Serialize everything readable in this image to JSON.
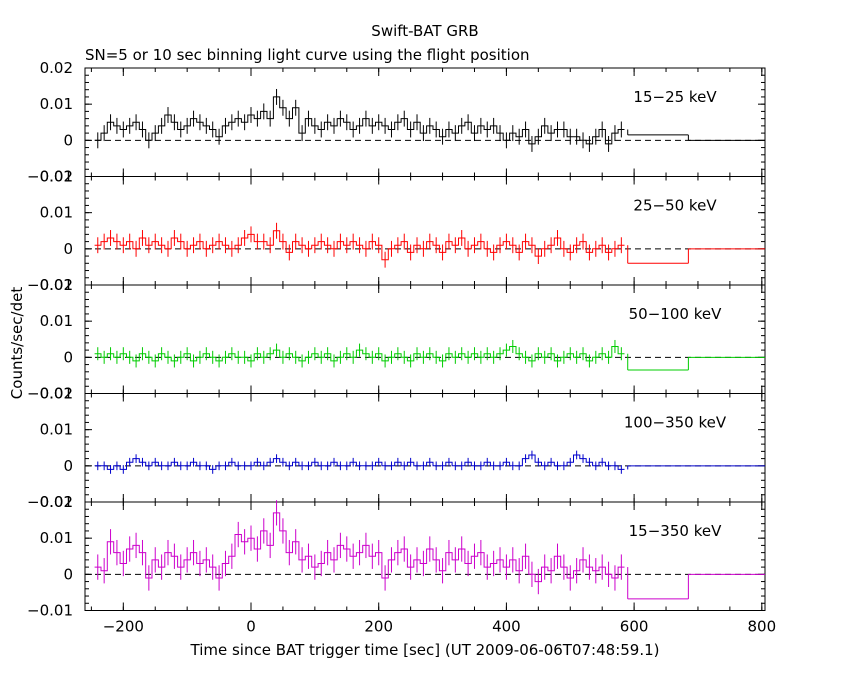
{
  "chart_data": {
    "type": "line",
    "title": "Swift-BAT GRB",
    "subtitle": "SN=5 or 10 sec binning light curve using the flight position",
    "xlabel": "Time since BAT trigger time [sec] (UT 2009-06-06T07:48:59.1)",
    "ylabel": "Counts/sec/det",
    "xlim": [
      -260,
      805
    ],
    "x_ticks": [
      -200,
      0,
      200,
      400,
      600,
      800
    ],
    "x_tick_labels": [
      "−200",
      "0",
      "200",
      "400",
      "600",
      "800"
    ],
    "grid": false,
    "panels": [
      {
        "name": "15−25 keV",
        "color": "#000000",
        "ylim": [
          -0.01,
          0.02
        ],
        "y_ticks": [
          -0.01,
          0,
          0.01,
          0.02
        ],
        "y_tick_labels": [
          "−0.01",
          "0",
          "0.01",
          "0.02"
        ],
        "binned_x": [
          -240,
          -230,
          -220,
          -210,
          -200,
          -190,
          -180,
          -170,
          -160,
          -150,
          -140,
          -130,
          -120,
          -110,
          -100,
          -90,
          -80,
          -70,
          -60,
          -50,
          -40,
          -30,
          -20,
          -10,
          0,
          10,
          20,
          30,
          40,
          50,
          60,
          70,
          80,
          90,
          100,
          110,
          120,
          130,
          140,
          150,
          160,
          170,
          180,
          190,
          200,
          210,
          220,
          230,
          240,
          250,
          260,
          270,
          280,
          290,
          300,
          310,
          320,
          330,
          340,
          350,
          360,
          370,
          380,
          390,
          400,
          410,
          420,
          430,
          440,
          450,
          460,
          470,
          480,
          490,
          500,
          510,
          520,
          530,
          540,
          550,
          560,
          570,
          580
        ],
        "binned_y": [
          0.0,
          0.002,
          0.005,
          0.004,
          0.003,
          0.004,
          0.005,
          0.003,
          0.0,
          0.002,
          0.004,
          0.007,
          0.005,
          0.003,
          0.004,
          0.006,
          0.005,
          0.004,
          0.003,
          0.001,
          0.004,
          0.005,
          0.006,
          0.005,
          0.007,
          0.006,
          0.008,
          0.006,
          0.012,
          0.009,
          0.006,
          0.009,
          0.002,
          0.006,
          0.004,
          0.003,
          0.005,
          0.004,
          0.006,
          0.005,
          0.003,
          0.004,
          0.006,
          0.004,
          0.005,
          0.004,
          0.003,
          0.005,
          0.006,
          0.003,
          0.005,
          0.002,
          0.004,
          0.003,
          0.001,
          0.003,
          0.002,
          0.004,
          0.005,
          0.002,
          0.004,
          0.003,
          0.004,
          0.002,
          0.0,
          0.002,
          0.001,
          0.003,
          -0.001,
          0.001,
          0.004,
          0.002,
          0.003,
          0.003,
          0.001,
          0.001,
          0.0,
          -0.001,
          0.001,
          0.003,
          -0.001,
          0.002,
          0.003
        ],
        "late_bins": [
          {
            "x": [
              590,
              685
            ],
            "y": 0.0015
          },
          {
            "x": [
              685,
              805
            ],
            "y": 0.0
          }
        ],
        "error": 0.0022
      },
      {
        "name": "25−50 keV",
        "color": "#ff0000",
        "ylim": [
          -0.01,
          0.02
        ],
        "y_ticks": [
          -0.01,
          0,
          0.01,
          0.02
        ],
        "y_tick_labels": [
          "−0.01",
          "0",
          "0.01",
          "0.02"
        ],
        "binned_x": [
          -240,
          -230,
          -220,
          -210,
          -200,
          -190,
          -180,
          -170,
          -160,
          -150,
          -140,
          -130,
          -120,
          -110,
          -100,
          -90,
          -80,
          -70,
          -60,
          -50,
          -40,
          -30,
          -20,
          -10,
          0,
          10,
          20,
          30,
          40,
          50,
          60,
          70,
          80,
          90,
          100,
          110,
          120,
          130,
          140,
          150,
          160,
          170,
          180,
          190,
          200,
          210,
          220,
          230,
          240,
          250,
          260,
          270,
          280,
          290,
          300,
          310,
          320,
          330,
          340,
          350,
          360,
          370,
          380,
          390,
          400,
          410,
          420,
          430,
          440,
          450,
          460,
          470,
          480,
          490,
          500,
          510,
          520,
          530,
          540,
          550,
          560,
          570,
          580
        ],
        "binned_y": [
          0.001,
          0.002,
          0.003,
          0.002,
          0.001,
          0.002,
          0.0,
          0.003,
          0.001,
          0.002,
          0.001,
          0.0,
          0.003,
          0.002,
          0.0,
          0.001,
          0.002,
          0.0,
          0.001,
          0.002,
          0.001,
          0.0,
          0.001,
          0.003,
          0.004,
          0.002,
          0.002,
          0.001,
          0.005,
          0.002,
          -0.001,
          0.002,
          0.001,
          0.0,
          0.001,
          0.002,
          0.001,
          0.0,
          0.002,
          0.001,
          0.002,
          0.001,
          0.0,
          0.002,
          0.001,
          -0.003,
          0.0,
          0.001,
          0.002,
          -0.001,
          0.001,
          0.0,
          0.002,
          0.001,
          -0.001,
          0.002,
          0.001,
          0.003,
          0.0,
          0.001,
          0.002,
          0.0,
          -0.001,
          0.001,
          0.002,
          0.001,
          -0.001,
          0.002,
          0.001,
          -0.002,
          0.0,
          0.001,
          0.003,
          0.0,
          -0.001,
          0.001,
          0.002,
          -0.001,
          0.0,
          0.001,
          -0.001,
          0.0,
          0.001
        ],
        "late_bins": [
          {
            "x": [
              590,
              685
            ],
            "y": -0.004
          },
          {
            "x": [
              685,
              805
            ],
            "y": 0.0
          }
        ],
        "error": 0.0022
      },
      {
        "name": "50−100 keV",
        "color": "#00cc00",
        "ylim": [
          -0.01,
          0.02
        ],
        "y_ticks": [
          -0.01,
          0,
          0.01,
          0.02
        ],
        "y_tick_labels": [
          "−0.01",
          "0",
          "0.01",
          "0.02"
        ],
        "binned_x": [
          -240,
          -230,
          -220,
          -210,
          -200,
          -190,
          -180,
          -170,
          -160,
          -150,
          -140,
          -130,
          -120,
          -110,
          -100,
          -90,
          -80,
          -70,
          -60,
          -50,
          -40,
          -30,
          -20,
          -10,
          0,
          10,
          20,
          30,
          40,
          50,
          60,
          70,
          80,
          90,
          100,
          110,
          120,
          130,
          140,
          150,
          160,
          170,
          180,
          190,
          200,
          210,
          220,
          230,
          240,
          250,
          260,
          270,
          280,
          290,
          300,
          310,
          320,
          330,
          340,
          350,
          360,
          370,
          380,
          390,
          400,
          410,
          420,
          430,
          440,
          450,
          460,
          470,
          480,
          490,
          500,
          510,
          520,
          530,
          540,
          550,
          560,
          570,
          580
        ],
        "binned_y": [
          0.001,
          0.0,
          0.001,
          0.0,
          0.001,
          0.0,
          -0.001,
          0.001,
          0.0,
          -0.001,
          0.001,
          0.0,
          -0.001,
          0.0,
          0.001,
          -0.001,
          0.0,
          0.001,
          0.0,
          -0.001,
          0.0,
          0.001,
          0.0,
          0.0,
          -0.001,
          0.001,
          0.0,
          0.001,
          0.002,
          0.0,
          0.001,
          0.0,
          -0.001,
          0.0,
          0.001,
          0.0,
          0.001,
          -0.001,
          0.0,
          0.001,
          0.0,
          0.002,
          0.001,
          0.0,
          0.001,
          -0.001,
          0.0,
          0.001,
          0.0,
          -0.001,
          0.001,
          0.0,
          0.001,
          0.0,
          -0.001,
          0.001,
          0.0,
          0.001,
          0.0,
          0.001,
          0.0,
          0.001,
          0.0,
          0.001,
          0.002,
          0.003,
          0.001,
          0.0,
          -0.001,
          0.001,
          0.0,
          0.001,
          -0.001,
          0.0,
          0.001,
          0.0,
          0.001,
          -0.001,
          0.0,
          0.001,
          0.0,
          0.003,
          0.001
        ],
        "late_bins": [
          {
            "x": [
              590,
              685
            ],
            "y": -0.0035
          },
          {
            "x": [
              685,
              805
            ],
            "y": 0.0
          }
        ],
        "error": 0.0018
      },
      {
        "name": "100−350 keV",
        "color": "#0000cc",
        "ylim": [
          -0.01,
          0.02
        ],
        "y_ticks": [
          -0.01,
          0,
          0.01,
          0.02
        ],
        "y_tick_labels": [
          "−0.01",
          "0",
          "0.01",
          "0.02"
        ],
        "binned_x": [
          -240,
          -230,
          -220,
          -210,
          -200,
          -190,
          -180,
          -170,
          -160,
          -150,
          -140,
          -130,
          -120,
          -110,
          -100,
          -90,
          -80,
          -70,
          -60,
          -50,
          -40,
          -30,
          -20,
          -10,
          0,
          10,
          20,
          30,
          40,
          50,
          60,
          70,
          80,
          90,
          100,
          110,
          120,
          130,
          140,
          150,
          160,
          170,
          180,
          190,
          200,
          210,
          220,
          230,
          240,
          250,
          260,
          270,
          280,
          290,
          300,
          310,
          320,
          330,
          340,
          350,
          360,
          370,
          380,
          390,
          400,
          410,
          420,
          430,
          440,
          450,
          460,
          470,
          480,
          490,
          500,
          510,
          520,
          530,
          540,
          550,
          560,
          570,
          580
        ],
        "binned_y": [
          0.0,
          0.0,
          -0.001,
          0.0,
          -0.001,
          0.001,
          0.002,
          0.001,
          0.0,
          0.001,
          0.0,
          0.0,
          0.001,
          0.0,
          0.0,
          0.001,
          0.0,
          0.0,
          -0.001,
          0.0,
          0.0,
          0.001,
          0.0,
          0.0,
          0.0,
          0.001,
          0.0,
          0.001,
          0.002,
          0.001,
          0.0,
          0.001,
          0.0,
          0.0,
          0.001,
          0.0,
          0.0,
          0.001,
          0.0,
          0.0,
          0.001,
          0.0,
          0.0,
          0.0,
          0.001,
          0.0,
          0.0,
          0.001,
          0.0,
          0.001,
          0.0,
          0.0,
          0.001,
          0.0,
          0.0,
          0.001,
          0.0,
          0.0,
          0.001,
          0.0,
          0.0,
          0.001,
          0.0,
          0.0,
          0.001,
          0.0,
          0.0,
          0.002,
          0.003,
          0.001,
          0.0,
          0.001,
          0.0,
          0.0,
          0.001,
          0.003,
          0.002,
          0.001,
          0.0,
          0.001,
          0.0,
          0.0,
          -0.001
        ],
        "late_bins": [
          {
            "x": [
              590,
              685
            ],
            "y": 0.0
          },
          {
            "x": [
              685,
              805
            ],
            "y": 0.0
          }
        ],
        "error": 0.0012
      },
      {
        "name": "15−350 keV",
        "color": "#cc00cc",
        "ylim": [
          -0.01,
          0.02
        ],
        "y_ticks": [
          -0.01,
          0,
          0.01,
          0.02
        ],
        "y_tick_labels": [
          "−0.01",
          "0",
          "0.01",
          "0.02"
        ],
        "binned_x": [
          -240,
          -230,
          -220,
          -210,
          -200,
          -190,
          -180,
          -170,
          -160,
          -150,
          -140,
          -130,
          -120,
          -110,
          -100,
          -90,
          -80,
          -70,
          -60,
          -50,
          -40,
          -30,
          -20,
          -10,
          0,
          10,
          20,
          30,
          40,
          50,
          60,
          70,
          80,
          90,
          100,
          110,
          120,
          130,
          140,
          150,
          160,
          170,
          180,
          190,
          200,
          210,
          220,
          230,
          240,
          250,
          260,
          270,
          280,
          290,
          300,
          310,
          320,
          330,
          340,
          350,
          360,
          370,
          380,
          390,
          400,
          410,
          420,
          430,
          440,
          450,
          460,
          470,
          480,
          490,
          500,
          510,
          520,
          530,
          540,
          550,
          560,
          570,
          580
        ],
        "binned_y": [
          0.002,
          0.001,
          0.009,
          0.006,
          0.003,
          0.007,
          0.008,
          0.006,
          -0.001,
          0.004,
          0.002,
          0.006,
          0.005,
          0.002,
          0.004,
          0.006,
          0.003,
          0.004,
          0.002,
          -0.001,
          0.003,
          0.005,
          0.011,
          0.009,
          0.01,
          0.007,
          0.012,
          0.008,
          0.017,
          0.012,
          0.006,
          0.009,
          0.004,
          0.005,
          0.002,
          0.003,
          0.006,
          0.004,
          0.008,
          0.007,
          0.005,
          0.006,
          0.008,
          0.005,
          0.006,
          -0.001,
          0.004,
          0.006,
          0.007,
          0.002,
          0.004,
          0.003,
          0.007,
          0.004,
          0.001,
          0.006,
          0.004,
          0.007,
          0.003,
          0.005,
          0.006,
          0.002,
          0.003,
          0.004,
          0.002,
          0.004,
          0.001,
          0.005,
          0.0,
          -0.002,
          0.002,
          0.001,
          0.005,
          0.002,
          -0.001,
          0.001,
          0.004,
          0.002,
          0.001,
          0.002,
          0.0,
          -0.001,
          0.002
        ],
        "late_bins": [
          {
            "x": [
              590,
              685
            ],
            "y": -0.0068
          },
          {
            "x": [
              685,
              805
            ],
            "y": 0.0
          }
        ],
        "error": 0.0035
      }
    ]
  }
}
